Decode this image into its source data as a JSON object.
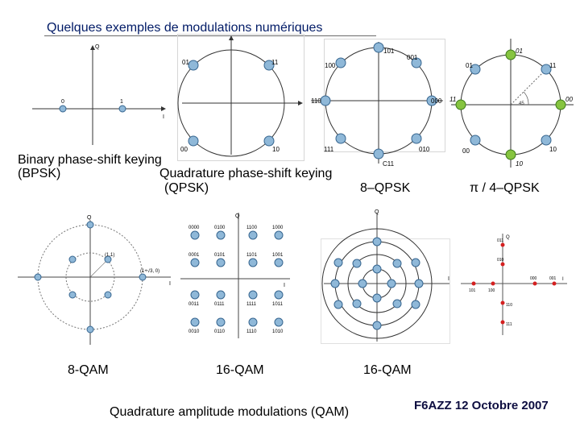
{
  "slide": {
    "title": "Quelques exemples de modulations numériques",
    "captions": {
      "bpsk_line1": "Binary phase-shift keying",
      "bpsk_line2": "(BPSK)",
      "qpsk_line1": "Quadrature phase-shift keying",
      "qpsk_line2": "(QPSK)",
      "psk8": "8–QPSK",
      "pi4qpsk": "π / 4–QPSK",
      "qam8": "8-QAM",
      "qam16a": "16-QAM",
      "qam16b": "16-QAM",
      "qam_footer": "Quadrature amplitude modulations (QAM)",
      "signature": "F6AZZ 12 Octobre 2007"
    }
  },
  "diagrams": {
    "bpsk": {
      "q_axis": "Q",
      "i_axis": "I",
      "points": [
        "0",
        "1"
      ]
    },
    "qpsk": {
      "points": [
        "01",
        "11",
        "00",
        "10"
      ]
    },
    "psk8": {
      "points": [
        "101",
        "100",
        "001",
        "110",
        "000",
        "111",
        "010",
        "C11"
      ]
    },
    "pi4": {
      "points": [
        "01",
        "11",
        "00",
        "10",
        "01",
        "11",
        "00",
        "10"
      ],
      "angle": "45"
    },
    "qam8": {
      "q_axis": "Q",
      "i_axis": "I",
      "labels": [
        "(1,1)",
        "(1+√3, 0)"
      ]
    },
    "qam16a": {
      "q_axis": "Q",
      "i_axis": "I",
      "points": [
        "0000",
        "0100",
        "1100",
        "1000",
        "0001",
        "0101",
        "1101",
        "1001",
        "0011",
        "0111",
        "1111",
        "1011",
        "0010",
        "0110",
        "1110",
        "1010"
      ]
    },
    "qam16b": {
      "q_axis": "Q",
      "i_axis": "I"
    },
    "bitpairs": {
      "q_axis": "Q",
      "i_axis": "I",
      "points": [
        "011",
        "010",
        "000",
        "001",
        "101",
        "100",
        "110",
        "111"
      ]
    }
  }
}
